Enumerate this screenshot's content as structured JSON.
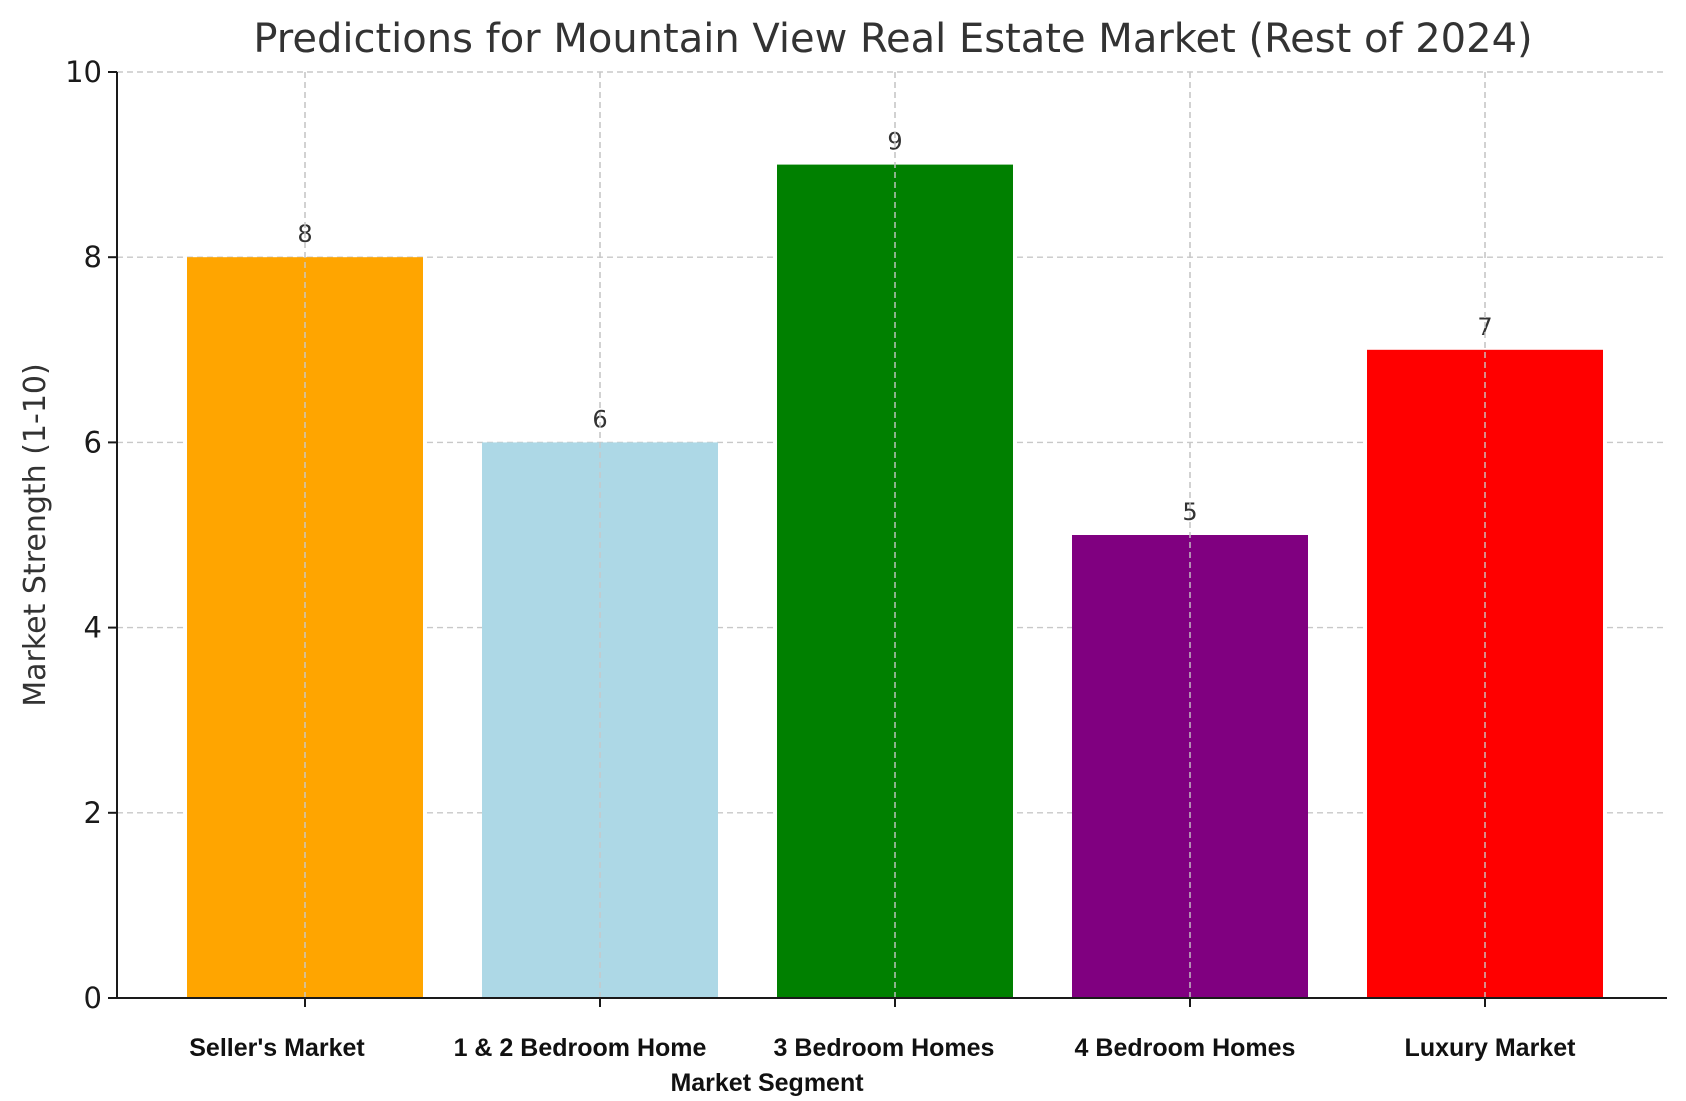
{
  "chart_data": {
    "type": "bar",
    "title": "Predictions for Mountain View Real Estate Market (Rest of 2024)",
    "xlabel": "Market Segment",
    "ylabel": "Market Strength (1-10)",
    "categories": [
      "Seller's Market",
      "1 & 2 Bedroom Home",
      "3 Bedroom Homes",
      "4 Bedroom Homes",
      "Luxury Market"
    ],
    "values": [
      8,
      6,
      9,
      5,
      7
    ],
    "colors": [
      "#FFA500",
      "#ADD8E6",
      "#008000",
      "#800080",
      "#FF0000"
    ],
    "ylim": [
      0,
      10
    ],
    "yticks": [
      0,
      2,
      4,
      6,
      8,
      10
    ],
    "grid": true,
    "data_labels": true
  }
}
